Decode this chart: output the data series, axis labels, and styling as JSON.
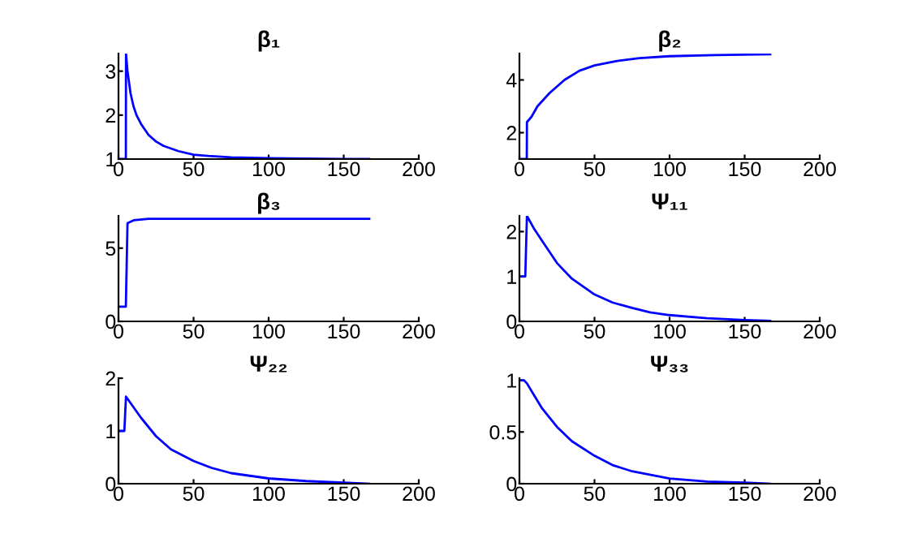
{
  "chart_data": [
    {
      "type": "line",
      "title": "β₁",
      "color": "#0000ff",
      "x": [
        0,
        4.9,
        5,
        6,
        8,
        10,
        12,
        15,
        20,
        25,
        30,
        40,
        50,
        60,
        75,
        100,
        125,
        150,
        167
      ],
      "values": [
        1,
        1,
        3.4,
        3.0,
        2.5,
        2.2,
        2.0,
        1.8,
        1.55,
        1.4,
        1.3,
        1.18,
        1.1,
        1.07,
        1.04,
        1.02,
        1.01,
        1.0,
        1.0
      ],
      "xlim": [
        0,
        200
      ],
      "ylim": [
        1,
        3.4
      ],
      "xticks": [
        0,
        50,
        100,
        150,
        200
      ],
      "yticks": [
        1,
        2,
        3
      ]
    },
    {
      "type": "line",
      "title": "β₂",
      "color": "#0000ff",
      "x": [
        0,
        4.9,
        5,
        8,
        12,
        20,
        30,
        40,
        50,
        65,
        80,
        100,
        130,
        167
      ],
      "values": [
        1,
        1,
        2.4,
        2.6,
        3.0,
        3.5,
        4.0,
        4.35,
        4.55,
        4.72,
        4.83,
        4.9,
        4.94,
        4.97
      ],
      "xlim": [
        0,
        200
      ],
      "ylim": [
        1,
        5
      ],
      "xticks": [
        0,
        50,
        100,
        150,
        200
      ],
      "yticks": [
        2,
        4
      ]
    },
    {
      "type": "line",
      "title": "β₃",
      "color": "#0000ff",
      "x": [
        0,
        4.9,
        6,
        10,
        20,
        50,
        100,
        167
      ],
      "values": [
        1,
        1,
        6.7,
        6.9,
        7.0,
        7.0,
        7.0,
        7.0
      ],
      "xlim": [
        0,
        200
      ],
      "ylim": [
        0,
        7.2
      ],
      "xticks": [
        0,
        50,
        100,
        150,
        200
      ],
      "yticks": [
        0,
        5
      ]
    },
    {
      "type": "line",
      "title": "Ψ₁₁",
      "color": "#0000ff",
      "x": [
        0,
        3.9,
        5,
        10,
        15,
        25,
        35,
        50,
        62,
        75,
        87,
        100,
        125,
        150,
        167
      ],
      "values": [
        1,
        1,
        2.35,
        2.05,
        1.8,
        1.3,
        0.95,
        0.6,
        0.42,
        0.3,
        0.2,
        0.14,
        0.07,
        0.03,
        0.01
      ],
      "xlim": [
        0,
        200
      ],
      "ylim": [
        0,
        2.35
      ],
      "xticks": [
        0,
        50,
        100,
        150,
        200
      ],
      "yticks": [
        0,
        1,
        2
      ]
    },
    {
      "type": "line",
      "title": "Ψ₂₂",
      "color": "#0000ff",
      "x": [
        0,
        3.9,
        5,
        10,
        15,
        25,
        35,
        50,
        62,
        75,
        100,
        125,
        150,
        167
      ],
      "values": [
        1,
        1,
        1.65,
        1.45,
        1.25,
        0.9,
        0.65,
        0.43,
        0.3,
        0.2,
        0.1,
        0.05,
        0.02,
        0.0
      ],
      "xlim": [
        0,
        200
      ],
      "ylim": [
        0,
        2
      ],
      "xticks": [
        0,
        50,
        100,
        150,
        200
      ],
      "yticks": [
        0,
        1,
        2
      ]
    },
    {
      "type": "line",
      "title": "Ψ₃₃",
      "color": "#0000ff",
      "x": [
        0,
        3,
        5,
        10,
        15,
        25,
        35,
        50,
        62,
        75,
        100,
        125,
        150,
        167
      ],
      "values": [
        1,
        1,
        0.97,
        0.85,
        0.73,
        0.55,
        0.41,
        0.27,
        0.18,
        0.12,
        0.05,
        0.02,
        0.01,
        0.0
      ],
      "xlim": [
        0,
        200
      ],
      "ylim": [
        0,
        1.02
      ],
      "xticks": [
        0,
        50,
        100,
        150,
        200
      ],
      "yticks": [
        0,
        0.5,
        1
      ]
    }
  ]
}
